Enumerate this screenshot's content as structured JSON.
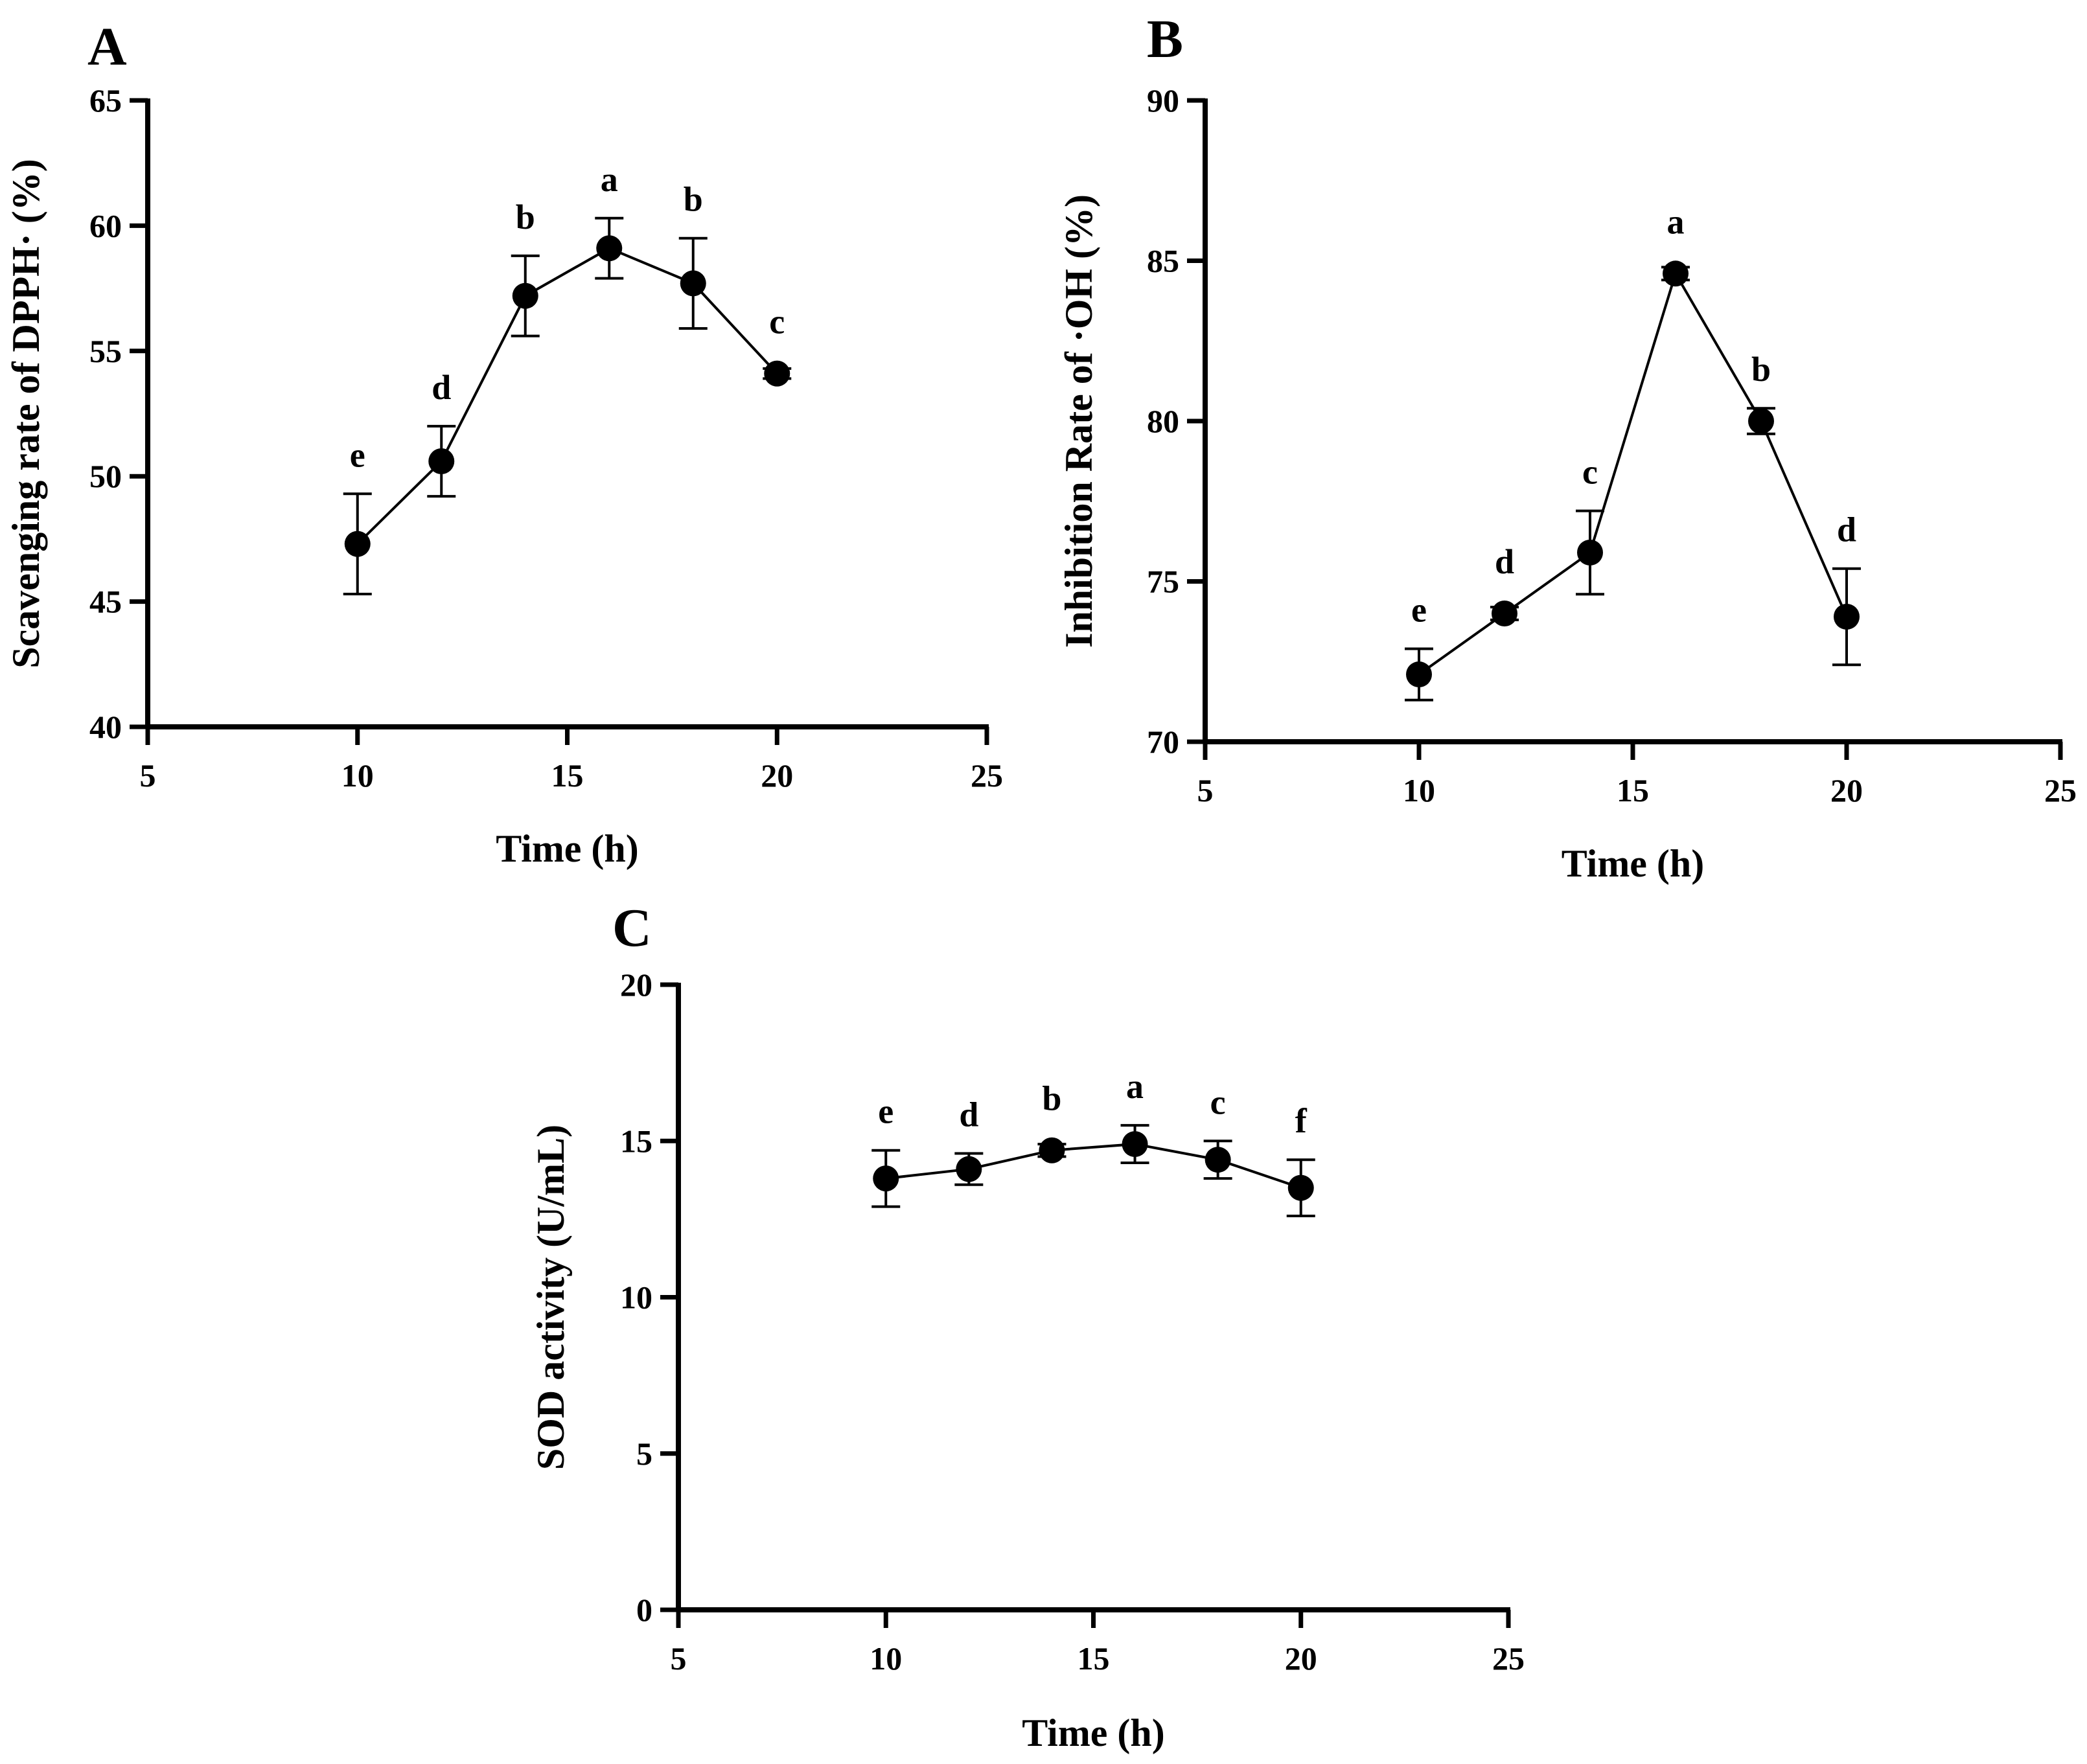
{
  "colors": {
    "ink": "#000000",
    "background": "#ffffff"
  },
  "chart_data": [
    {
      "panel": "A",
      "type": "line",
      "xlabel": "Time (h)",
      "ylabel": "Scavenging rate of DPPH· (%)",
      "xlim": [
        5,
        25
      ],
      "ylim": [
        40,
        65
      ],
      "xticks": [
        5,
        10,
        15,
        20,
        25
      ],
      "yticks": [
        40,
        45,
        50,
        55,
        60,
        65
      ],
      "grid": false,
      "series": [
        {
          "name": "DPPH scavenging",
          "x": [
            10,
            12,
            14,
            16,
            18,
            20
          ],
          "y": [
            47.3,
            50.6,
            57.2,
            59.1,
            57.7,
            54.1
          ],
          "error": [
            2.0,
            1.4,
            1.6,
            1.2,
            1.8,
            0.2
          ],
          "labels": [
            "e",
            "d",
            "b",
            "a",
            "b",
            "c"
          ]
        }
      ]
    },
    {
      "panel": "B",
      "type": "line",
      "xlabel": "Time (h)",
      "ylabel": "Inhibition Rate of ·OH (%)",
      "xlim": [
        5,
        25
      ],
      "ylim": [
        70,
        90
      ],
      "xticks": [
        5,
        10,
        15,
        20,
        25
      ],
      "yticks": [
        70,
        75,
        80,
        85,
        90
      ],
      "grid": false,
      "series": [
        {
          "name": "·OH inhibition",
          "x": [
            10,
            12,
            14,
            16,
            18,
            20
          ],
          "y": [
            72.1,
            74.0,
            75.9,
            84.6,
            80.0,
            73.9
          ],
          "error": [
            0.8,
            0.2,
            1.3,
            0.2,
            0.4,
            1.5
          ],
          "labels": [
            "e",
            "d",
            "c",
            "a",
            "b",
            "d"
          ]
        }
      ]
    },
    {
      "panel": "C",
      "type": "line",
      "xlabel": "Time (h)",
      "ylabel": "SOD activity (U/mL)",
      "xlim": [
        5,
        25
      ],
      "ylim": [
        0,
        20
      ],
      "xticks": [
        5,
        10,
        15,
        20,
        25
      ],
      "yticks": [
        0,
        5,
        10,
        15,
        20
      ],
      "grid": false,
      "series": [
        {
          "name": "SOD activity",
          "x": [
            10,
            12,
            14,
            16,
            18,
            20
          ],
          "y": [
            13.8,
            14.1,
            14.7,
            14.9,
            14.4,
            13.5
          ],
          "error": [
            0.9,
            0.5,
            0.2,
            0.6,
            0.6,
            0.9
          ],
          "labels": [
            "e",
            "d",
            "b",
            "a",
            "c",
            "f"
          ]
        }
      ]
    }
  ]
}
